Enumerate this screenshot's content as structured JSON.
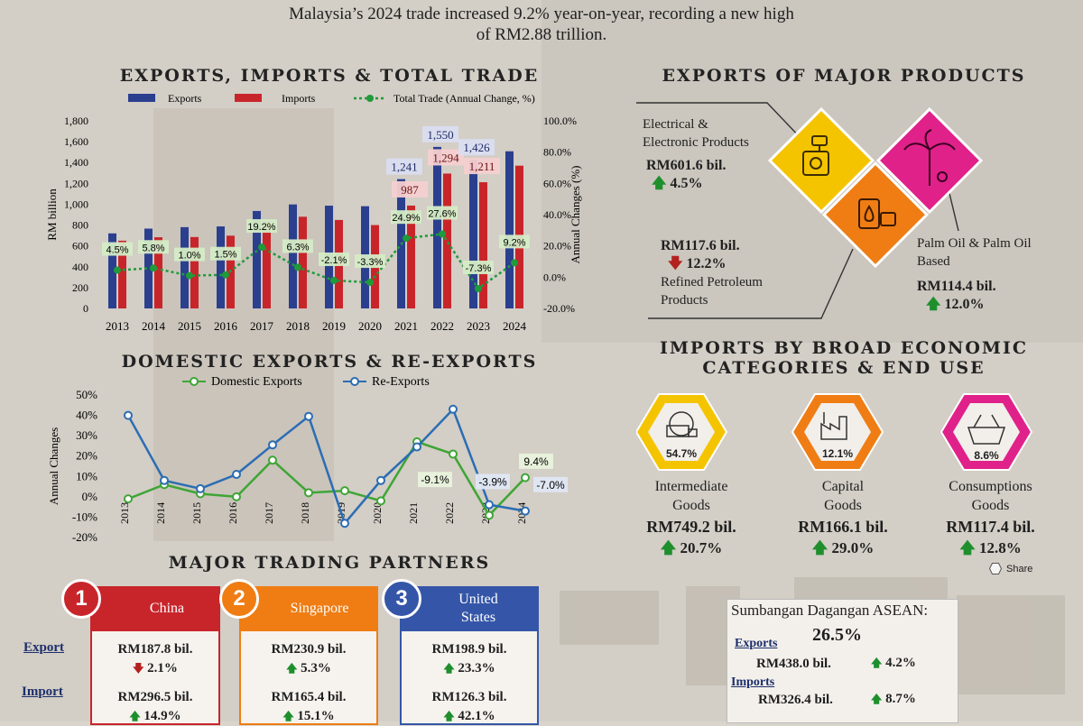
{
  "headline": {
    "line1": "Malaysia’s 2024 trade increased 9.2% year-on-year, recording a new high",
    "line2": "of RM2.88 trillion."
  },
  "colors": {
    "exports_bar": "#2b3f8f",
    "imports_bar": "#c8252b",
    "total_trade_line": "#1e9b3a",
    "domestic_line": "#3fa535",
    "reexports_line": "#2b6db3",
    "up_arrow": "#1f8f2e",
    "down_arrow": "#b3211e",
    "yellow": "#f5c400",
    "orange": "#ef7d14",
    "magenta": "#e0218a"
  },
  "section_titles": {
    "trade": "EXPORTS, IMPORTS & TOTAL TRADE",
    "major_products": "EXPORTS OF MAJOR PRODUCTS",
    "domestic": "DOMESTIC EXPORTS & RE-EXPORTS",
    "imports_line1": "IMPORTS BY BROAD ECONOMIC",
    "imports_line2": "CATEGORIES & END USE",
    "partners": "MAJOR TRADING PARTNERS"
  },
  "chart_data": [
    {
      "type": "bar",
      "title": "EXPORTS, IMPORTS & TOTAL TRADE",
      "ylabel": "RM billion",
      "y2label": "Annual Changes (%)",
      "ylim": [
        0,
        1800
      ],
      "y2lim": [
        -20,
        100
      ],
      "yticks": [
        "0",
        "200",
        "400",
        "600",
        "800",
        "1,000",
        "1,200",
        "1,400",
        "1,600",
        "1,800"
      ],
      "y2ticks": [
        "-20.0%",
        "0.0%",
        "20.0%",
        "40.0%",
        "60.0%",
        "80.0%",
        "100.0%"
      ],
      "categories": [
        "2013",
        "2014",
        "2015",
        "2016",
        "2017",
        "2018",
        "2019",
        "2020",
        "2021",
        "2022",
        "2023",
        "2024"
      ],
      "series": [
        {
          "name": "Exports",
          "values": [
            720,
            766,
            780,
            787,
            935,
            998,
            986,
            981,
            1241,
            1550,
            1426,
            1508
          ]
        },
        {
          "name": "Imports",
          "values": [
            650,
            683,
            685,
            698,
            838,
            880,
            849,
            800,
            987,
            1294,
            1211,
            1370
          ]
        },
        {
          "name": "Total Trade (Annual Change, %)",
          "values": [
            4.5,
            5.8,
            1.0,
            1.5,
            19.2,
            6.3,
            -2.1,
            -3.3,
            24.9,
            27.6,
            -7.3,
            9.2
          ]
        }
      ],
      "bar_labels": {
        "exports": {
          "2021": "1,241",
          "2022": "1,550",
          "2023": "1,426"
        },
        "imports": {
          "2021": "987",
          "2022": "1,294",
          "2023": "1,211"
        }
      },
      "change_labels": [
        "4.5%",
        "5.8%",
        "1.0%",
        "1.5%",
        "19.2%",
        "6.3%",
        "-2.1%",
        "-3.3%",
        "24.9%",
        "27.6%",
        "-7.3%",
        "9.2%"
      ],
      "legend": "top"
    },
    {
      "type": "line",
      "title": "DOMESTIC EXPORTS & RE-EXPORTS",
      "ylabel": "Annual Changes",
      "ylim": [
        -20,
        50
      ],
      "yticks": [
        "-20%",
        "-10%",
        "0%",
        "10%",
        "20%",
        "30%",
        "40%",
        "50%"
      ],
      "categories": [
        "2013",
        "2014",
        "2015",
        "2016",
        "2017",
        "2018",
        "2019",
        "2020",
        "2021",
        "2022",
        "2023",
        "2024"
      ],
      "series": [
        {
          "name": "Domestic Exports",
          "values": [
            -1,
            6,
            1.5,
            0,
            18,
            2,
            3,
            -2,
            27,
            21,
            -9.1,
            9.4
          ]
        },
        {
          "name": "Re-Exports",
          "values": [
            40,
            8,
            4,
            11,
            25.5,
            39.5,
            -13,
            8,
            24.5,
            43,
            -3.9,
            -7.0
          ]
        }
      ],
      "annotations": [
        "-3.9%",
        "9.4%",
        "-9.1%",
        "-7.0%"
      ],
      "legend": "top"
    }
  ],
  "trade_legend": {
    "exports": "Exports",
    "imports": "Imports",
    "total": "Total Trade (Annual Change, %)"
  },
  "domestic_legend": {
    "domestic": "Domestic Exports",
    "reexports": "Re-Exports"
  },
  "products": {
    "ee": {
      "name_line1": "Electrical &",
      "name_line2": "Electronic Products",
      "value": "RM601.6 bil.",
      "change": "4.5%"
    },
    "petroleum": {
      "value": "RM117.6 bil.",
      "change": "12.2%",
      "name_line1": "Refined Petroleum",
      "name_line2": "Products"
    },
    "palm": {
      "name_line1": "Palm Oil & Palm Oil",
      "name_line2": "Based",
      "value": "RM114.4 bil.",
      "change": "12.0%"
    }
  },
  "imports_categories": [
    {
      "pct": "54.7%",
      "name_line1": "Intermediate",
      "name_line2": "Goods",
      "value": "RM749.2 bil.",
      "change": "20.7%"
    },
    {
      "pct": "12.1%",
      "name_line1": "Capital",
      "name_line2": "Goods",
      "value": "RM166.1 bil.",
      "change": "29.0%"
    },
    {
      "pct": "8.6%",
      "name_line1": "Consumptions",
      "name_line2": "Goods",
      "value": "RM117.4 bil.",
      "change": "12.8%"
    }
  ],
  "share_label": "Share",
  "partners": {
    "row_export": "Export",
    "row_import": "Import",
    "items": [
      {
        "rank": "1",
        "name": "China",
        "export_value": "RM187.8 bil.",
        "export_change": "2.1%",
        "import_value": "RM296.5 bil.",
        "import_change": "14.9%"
      },
      {
        "rank": "2",
        "name": "Singapore",
        "export_value": "RM230.9 bil.",
        "export_change": "5.3%",
        "import_value": "RM165.4 bil.",
        "import_change": "15.1%"
      },
      {
        "rank": "3",
        "name_line1": "United",
        "name_line2": "States",
        "export_value": "RM198.9 bil.",
        "export_change": "23.3%",
        "import_value": "RM126.3 bil.",
        "import_change": "42.1%"
      }
    ]
  },
  "asean": {
    "title": "Sumbangan Dagangan ASEAN:",
    "share": "26.5%",
    "exports_label": "Exports",
    "exports_value": "RM438.0 bil.",
    "exports_change": "4.2%",
    "imports_label": "Imports",
    "imports_value": "RM326.4 bil.",
    "imports_change": "8.7%"
  }
}
